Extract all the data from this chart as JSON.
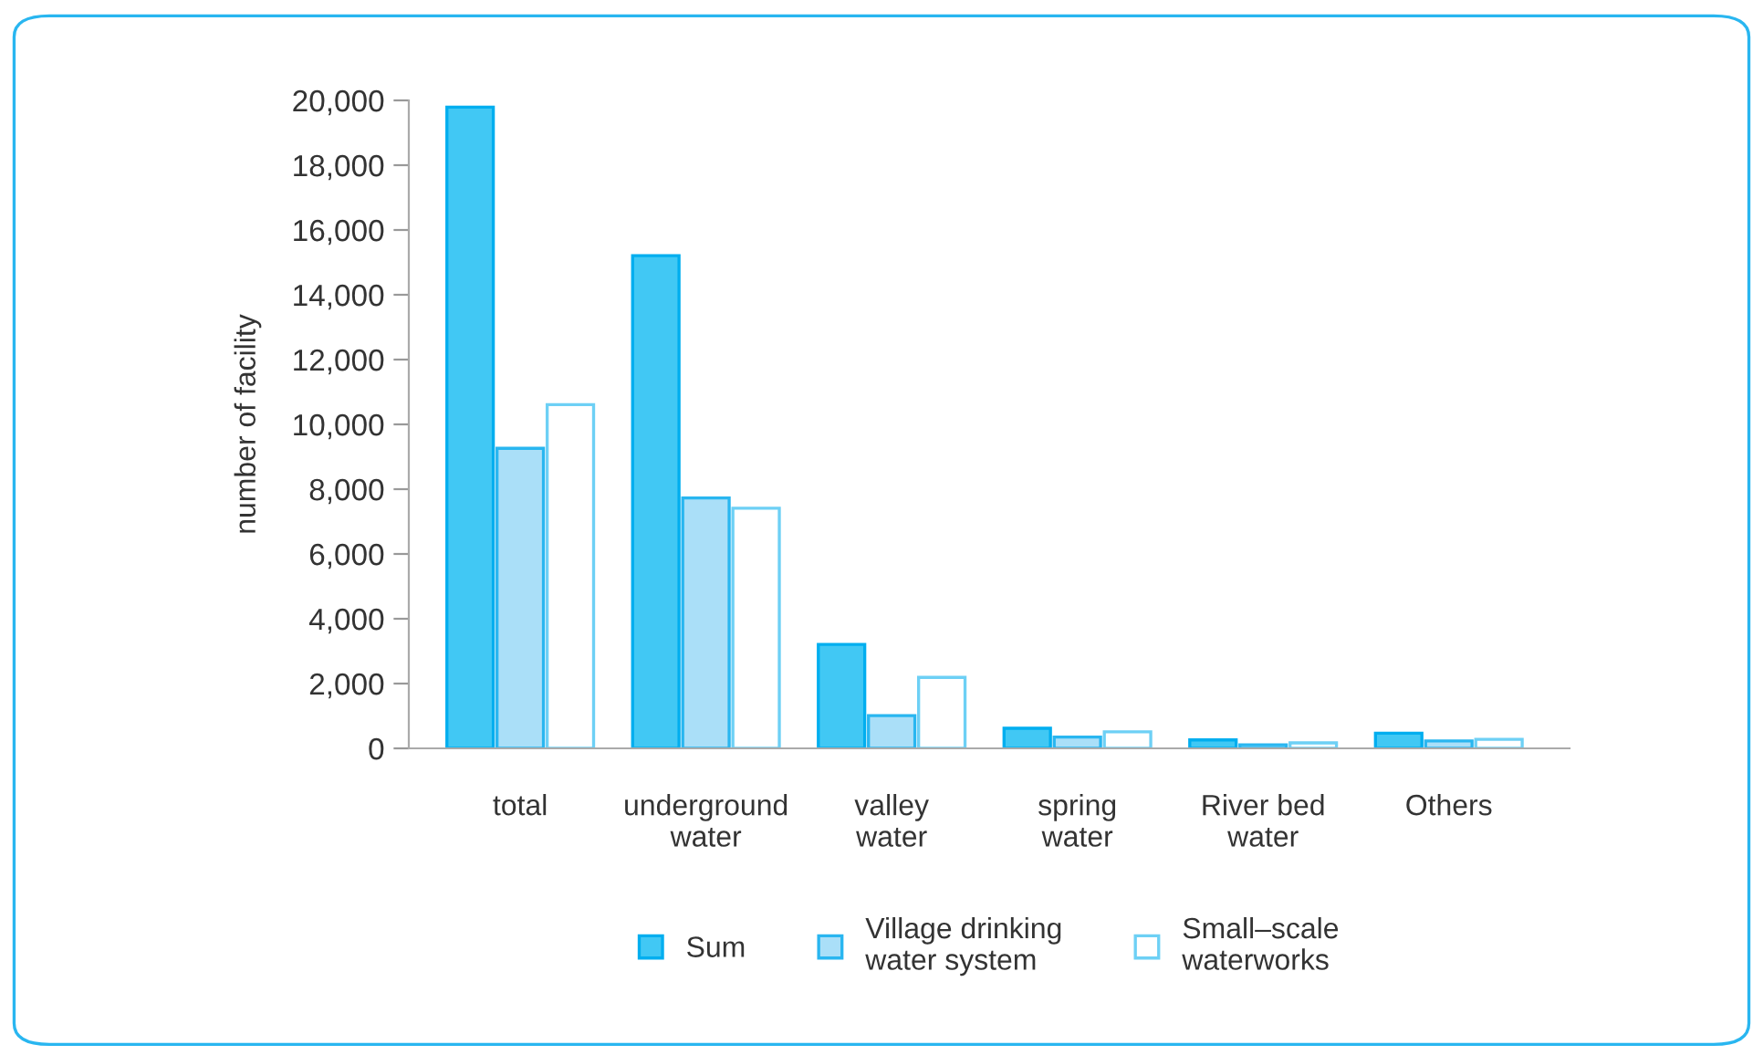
{
  "chart_data": {
    "type": "bar",
    "ylabel": "number of facility",
    "categories": [
      "total",
      "underground\nwater",
      "valley\nwater",
      "spring\nwater",
      "River bed\nwater",
      "Others"
    ],
    "series": [
      {
        "name": "Sum",
        "color": "#41c8f4",
        "values": [
          19790,
          15210,
          3210,
          620,
          260,
          470
        ]
      },
      {
        "name": "Village drinking\nwater system",
        "color": "#aadff8",
        "values": [
          9260,
          7730,
          1010,
          350,
          110,
          230
        ]
      },
      {
        "name": "Small–scale\nwaterworks",
        "color": "#ffffff",
        "values": [
          10610,
          7410,
          2190,
          510,
          170,
          280
        ]
      }
    ],
    "ylim": [
      0,
      20000
    ],
    "yticks": [
      {
        "value": 0,
        "label": "0"
      },
      {
        "value": 2000,
        "label": "2,000"
      },
      {
        "value": 4000,
        "label": "4,000"
      },
      {
        "value": 6000,
        "label": "6,000"
      },
      {
        "value": 8000,
        "label": "8,000"
      },
      {
        "value": 10000,
        "label": "10,000"
      },
      {
        "value": 12000,
        "label": "12,000"
      },
      {
        "value": 14000,
        "label": "14,000"
      },
      {
        "value": 16000,
        "label": "16,000"
      },
      {
        "value": 18000,
        "label": "18,000"
      },
      {
        "value": 20000,
        "label": "20,000"
      }
    ],
    "grid": false,
    "legend": "bottom"
  }
}
